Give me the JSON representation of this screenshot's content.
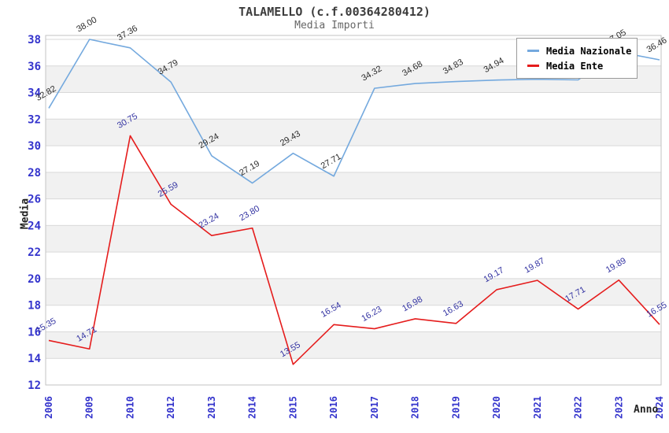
{
  "chart_data": {
    "type": "line",
    "title": "TALAMELLO (c.f.00364280412)",
    "subtitle": "Media Importi",
    "xlabel": "Anno",
    "ylabel": "Media",
    "ylim": [
      12,
      38
    ],
    "ytick_step": 2,
    "grid": true,
    "legend_position": "top-right",
    "categories": [
      "2006",
      "2009",
      "2010",
      "2012",
      "2013",
      "2014",
      "2015",
      "2016",
      "2017",
      "2018",
      "2019",
      "2020",
      "2021",
      "2022",
      "2023",
      "2024"
    ],
    "series": [
      {
        "name": "Media Nazionale",
        "color": "#74a9de",
        "label_color": "#2b2b2b",
        "values": [
          32.82,
          38.0,
          37.36,
          34.79,
          29.24,
          27.19,
          29.43,
          27.71,
          34.32,
          34.68,
          34.83,
          34.94,
          35.0,
          34.95,
          37.05,
          36.46
        ],
        "labels": [
          "32.82",
          "38.00",
          "37.36",
          "34.79",
          "29.24",
          "27.19",
          "29.43",
          "27.71",
          "34.32",
          "34.68",
          "34.83",
          "34.94",
          "",
          "",
          "37.05",
          "36.46"
        ]
      },
      {
        "name": "Media Ente",
        "color": "#e51c1c",
        "label_color": "#3333a2",
        "values": [
          15.35,
          14.71,
          30.75,
          25.59,
          23.24,
          23.8,
          13.55,
          16.54,
          16.23,
          16.98,
          16.63,
          19.17,
          19.87,
          17.71,
          19.89,
          16.55
        ],
        "labels": [
          "15.35",
          "14.71",
          "30.75",
          "25.59",
          "23.24",
          "23.80",
          "13.55",
          "16.54",
          "16.23",
          "16.98",
          "16.63",
          "19.17",
          "19.87",
          "17.71",
          "19.89",
          "16.55"
        ]
      }
    ],
    "colors": {
      "band": "#f1f1f1",
      "grid": "#d9d9d9",
      "plot_border": "#c3c3c3",
      "tick_labels": "#3333cc",
      "axis_titles": "#222222",
      "title": "#3c3c3c",
      "subtitle": "#666666",
      "legend_border": "#9a9a9a"
    }
  }
}
